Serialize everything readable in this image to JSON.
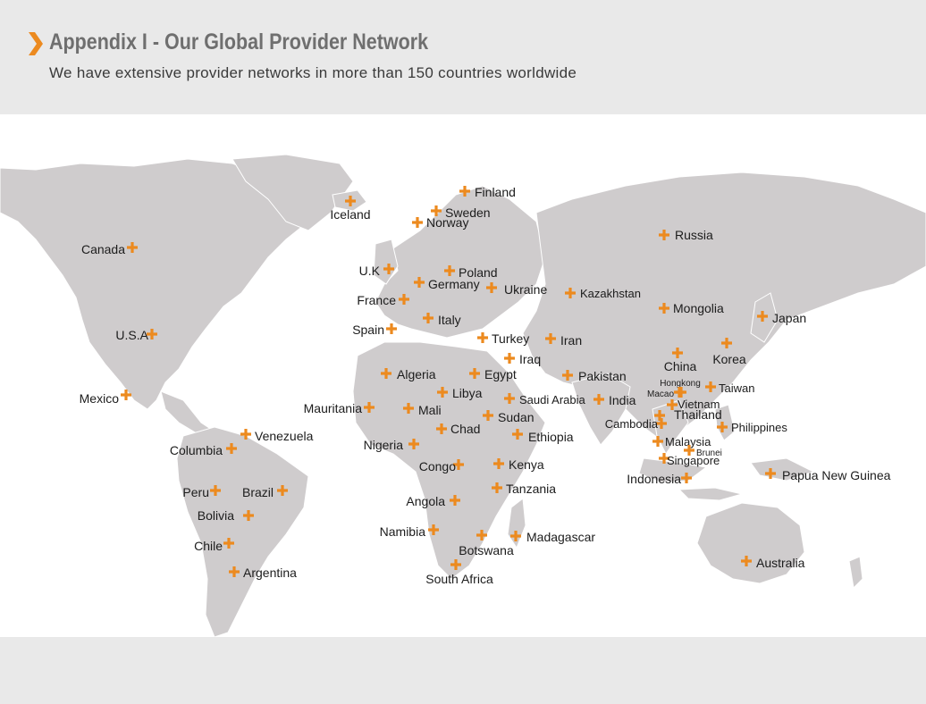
{
  "header": {
    "title": "Appendix I - Our Global Provider Network",
    "subtitle": "We have extensive provider networks in more than 150 countries worldwide"
  },
  "colors": {
    "marker": "#ec8a1f",
    "land": "#cfcccd",
    "ocean": "#ffffff",
    "background": "#e9e9e9",
    "title": "#6f6f6f"
  },
  "icons": {
    "marker": "plus-icon",
    "header": "chevron-right-icon"
  },
  "locations": [
    "Canada",
    "U.S.A",
    "Mexico",
    "Iceland",
    "Finland",
    "Sweden",
    "Norway",
    "U.K",
    "Poland",
    "Germany",
    "France",
    "Ukraine",
    "Spain",
    "Italy",
    "Turkey",
    "Iran",
    "Iraq",
    "Algeria",
    "Egypt",
    "Libya",
    "Mauritania",
    "Mali",
    "Saudi Arabia",
    "Sudan",
    "Chad",
    "Nigeria",
    "Ethiopia",
    "Congo",
    "Kenya",
    "Tanzania",
    "Angola",
    "Namibia",
    "Botswana",
    "Madagascar",
    "South Africa",
    "Venezuela",
    "Columbia",
    "Peru",
    "Brazil",
    "Bolivia",
    "Chile",
    "Argentina",
    "Russia",
    "Kazakhstan",
    "Mongolia",
    "Japan",
    "Korea",
    "China",
    "Pakistan",
    "India",
    "Hongkong",
    "Macao",
    "Taiwan",
    "Vietnam",
    "Thailand",
    "Cambodia",
    "Philippines",
    "Malaysia",
    "Brunei",
    "Singapore",
    "Indonesia",
    "Papua New Guinea",
    "Australia"
  ]
}
